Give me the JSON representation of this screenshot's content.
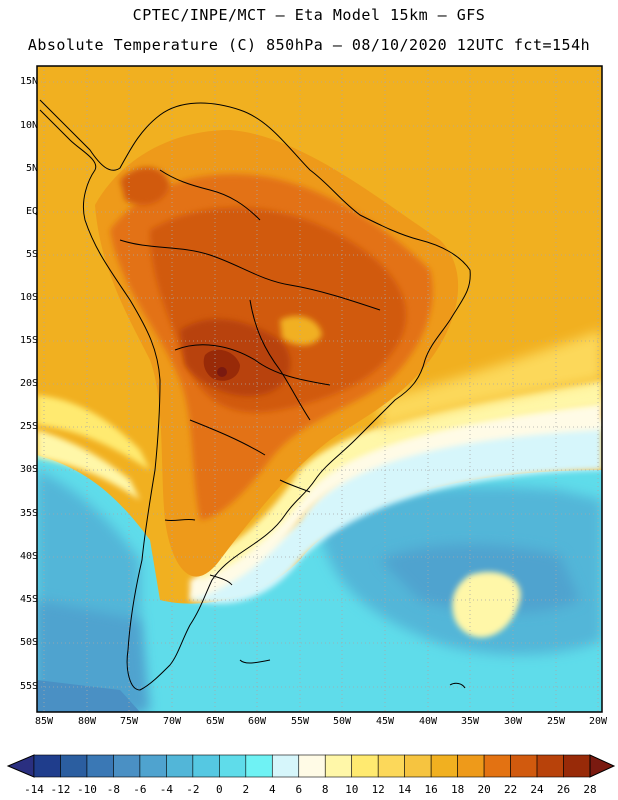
{
  "header": {
    "line1": "CPTEC/INPE/MCT —  Eta Model 15km — GFS",
    "line2": "Absolute Temperature (C) 850hPa — 08/10/2020 12UTC fct=154h"
  },
  "axes": {
    "lat_labels": [
      "15N",
      "10N",
      "5N",
      "EQ",
      "5S",
      "10S",
      "15S",
      "20S",
      "25S",
      "30S",
      "35S",
      "40S",
      "45S",
      "50S",
      "55S"
    ],
    "lon_labels": [
      "85W",
      "80W",
      "75W",
      "70W",
      "65W",
      "60W",
      "55W",
      "50W",
      "45W",
      "40W",
      "35W",
      "30W",
      "25W",
      "20W"
    ]
  },
  "colorbar": {
    "labels": [
      "-14",
      "-12",
      "-10",
      "-8",
      "-6",
      "-4",
      "-2",
      "0",
      "2",
      "4",
      "6",
      "8",
      "10",
      "12",
      "14",
      "16",
      "18",
      "20",
      "22",
      "24",
      "26",
      "28"
    ],
    "colors": [
      "#1f3d8c",
      "#2b5ea0",
      "#3a78b5",
      "#4a90c4",
      "#4fa3cf",
      "#52b6d8",
      "#55c8e2",
      "#5fdcea",
      "#6ff2f4",
      "#d6f6fb",
      "#fffbe6",
      "#fff7a8",
      "#ffea70",
      "#fcd85a",
      "#f6c440",
      "#f1b020",
      "#ee9a1a",
      "#e37212",
      "#d15a0e",
      "#b8420a",
      "#982a08",
      "#7a1a10"
    ]
  }
}
